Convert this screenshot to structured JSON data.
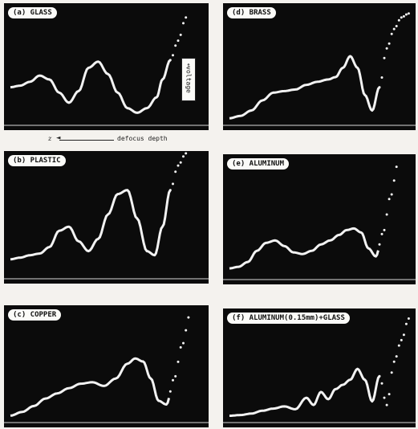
{
  "figure": {
    "x_axis_label": "z ← defocus depth",
    "x_axis_var": "z",
    "x_axis_text": "defocus depth",
    "y_axis_label": "voltage"
  },
  "chart_data": [
    {
      "type": "line",
      "panel_label": "(a) GLASS",
      "y_axis_label": "voltage",
      "x": [
        0,
        0.05,
        0.1,
        0.15,
        0.2,
        0.25,
        0.3,
        0.35,
        0.4,
        0.45,
        0.5,
        0.55,
        0.6,
        0.65,
        0.7,
        0.75,
        0.78,
        0.82,
        0.86,
        0.9
      ],
      "y": [
        0.45,
        0.47,
        0.52,
        0.6,
        0.55,
        0.38,
        0.25,
        0.4,
        0.7,
        0.78,
        0.62,
        0.38,
        0.18,
        0.12,
        0.18,
        0.32,
        0.55,
        0.8,
        1.05,
        1.35
      ]
    },
    {
      "type": "line",
      "panel_label": "(d) BRASS",
      "x": [
        0,
        0.06,
        0.12,
        0.18,
        0.24,
        0.3,
        0.36,
        0.42,
        0.48,
        0.54,
        0.58,
        0.62,
        0.66,
        0.7,
        0.74,
        0.78,
        0.82,
        0.86,
        0.9,
        0.94,
        0.98
      ],
      "y": [
        0.05,
        0.08,
        0.15,
        0.28,
        0.38,
        0.4,
        0.42,
        0.48,
        0.52,
        0.55,
        0.58,
        0.7,
        0.85,
        0.7,
        0.35,
        0.15,
        0.45,
        0.95,
        1.2,
        1.35,
        1.4
      ]
    },
    {
      "type": "line",
      "panel_label": "(b) PLASTIC",
      "x": [
        0,
        0.05,
        0.1,
        0.15,
        0.2,
        0.25,
        0.3,
        0.35,
        0.4,
        0.45,
        0.5,
        0.55,
        0.6,
        0.65,
        0.7,
        0.74,
        0.78,
        0.82,
        0.86,
        0.9
      ],
      "y": [
        0.2,
        0.22,
        0.25,
        0.27,
        0.35,
        0.55,
        0.6,
        0.42,
        0.3,
        0.45,
        0.75,
        1.0,
        1.05,
        0.7,
        0.3,
        0.25,
        0.6,
        1.05,
        1.35,
        1.5
      ]
    },
    {
      "type": "line",
      "panel_label": "(e) ALUMINUM",
      "x": [
        0,
        0.05,
        0.1,
        0.15,
        0.2,
        0.25,
        0.3,
        0.35,
        0.4,
        0.45,
        0.5,
        0.55,
        0.6,
        0.64,
        0.68,
        0.72,
        0.76,
        0.8,
        0.84,
        0.88,
        0.92
      ],
      "y": [
        0.1,
        0.12,
        0.18,
        0.32,
        0.42,
        0.45,
        0.38,
        0.3,
        0.28,
        0.32,
        0.4,
        0.45,
        0.52,
        0.58,
        0.6,
        0.55,
        0.35,
        0.25,
        0.55,
        1.0,
        1.4
      ]
    },
    {
      "type": "line",
      "panel_label": "(c) COPPER",
      "x": [
        0,
        0.06,
        0.12,
        0.18,
        0.24,
        0.3,
        0.36,
        0.42,
        0.48,
        0.54,
        0.6,
        0.64,
        0.68,
        0.72,
        0.76,
        0.8,
        0.84,
        0.88,
        0.92
      ],
      "y": [
        0.05,
        0.1,
        0.18,
        0.28,
        0.35,
        0.42,
        0.48,
        0.5,
        0.45,
        0.55,
        0.75,
        0.82,
        0.78,
        0.55,
        0.25,
        0.2,
        0.55,
        1.0,
        1.4
      ]
    },
    {
      "type": "line",
      "panel_label": "(f) ALUMINUM(0.15mm)+GLASS",
      "x": [
        0,
        0.06,
        0.12,
        0.18,
        0.24,
        0.3,
        0.36,
        0.42,
        0.46,
        0.5,
        0.54,
        0.58,
        0.62,
        0.66,
        0.7,
        0.74,
        0.78,
        0.82,
        0.86,
        0.9,
        0.94,
        0.98
      ],
      "y": [
        0.05,
        0.06,
        0.08,
        0.12,
        0.15,
        0.18,
        0.14,
        0.3,
        0.2,
        0.38,
        0.28,
        0.42,
        0.48,
        0.55,
        0.7,
        0.55,
        0.25,
        0.6,
        0.2,
        0.8,
        1.1,
        1.4
      ]
    }
  ]
}
